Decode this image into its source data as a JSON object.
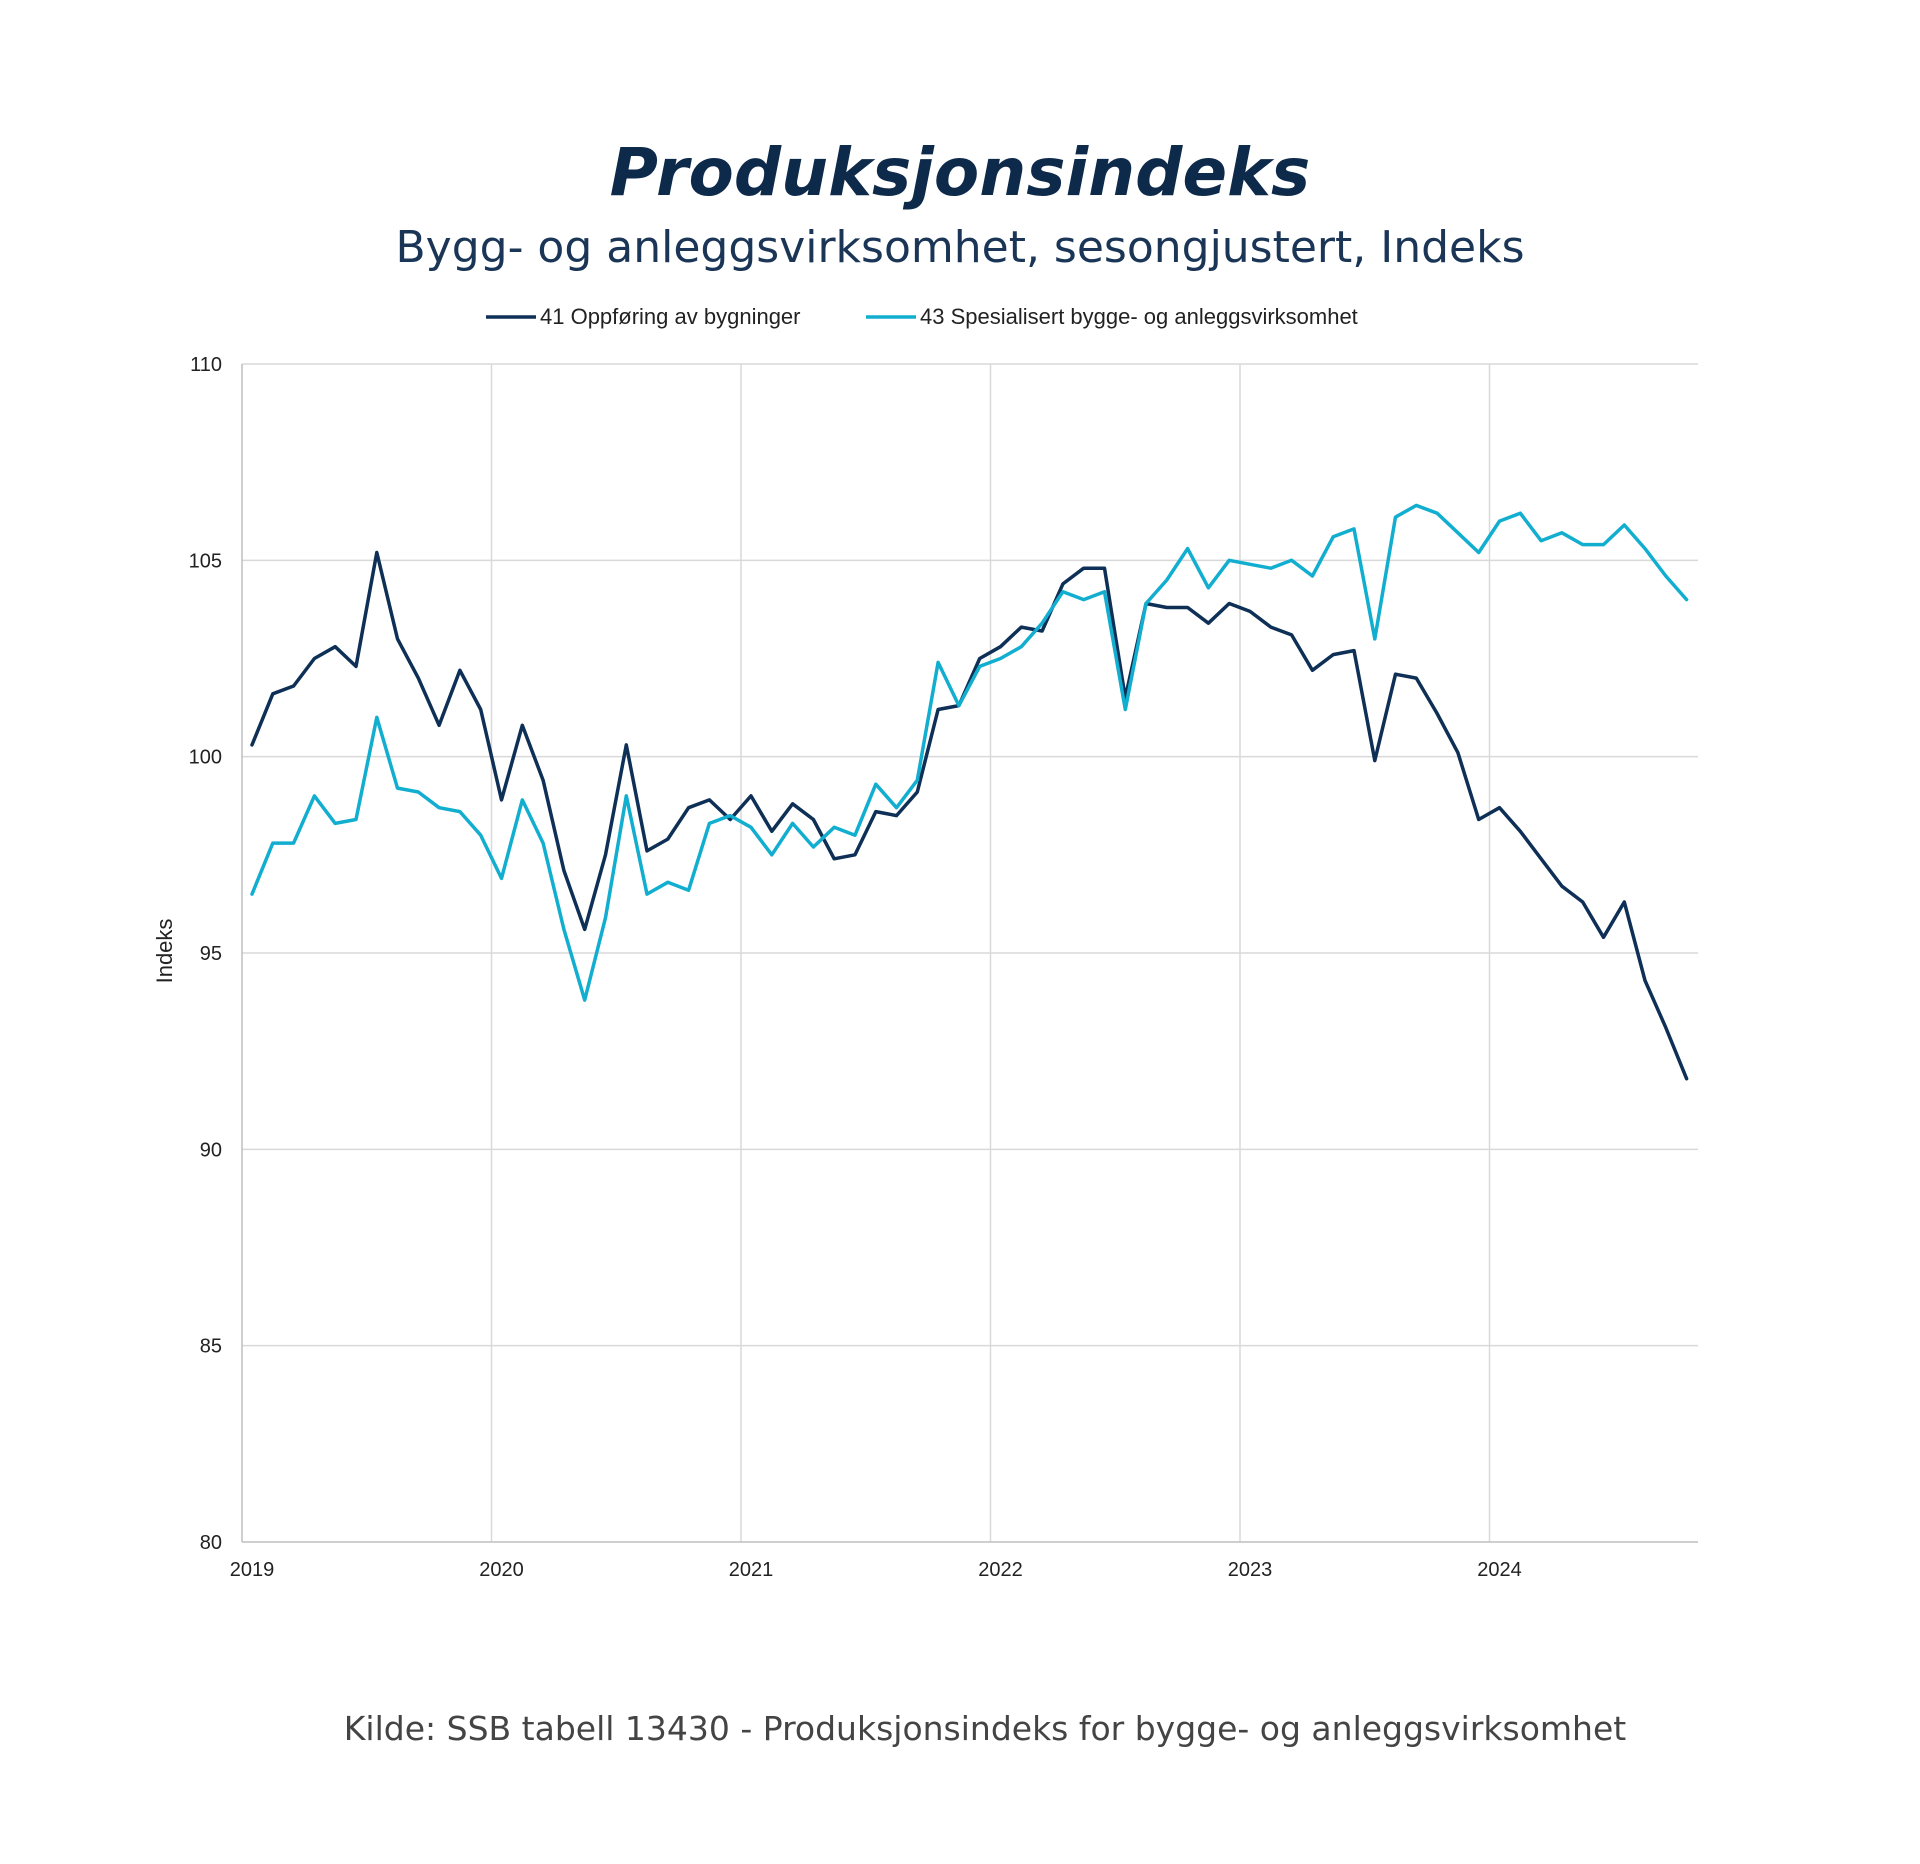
{
  "chart_data": {
    "type": "line",
    "title": "Produksjonsindeks",
    "subtitle": "Bygg- og anleggsvirksomhet, sesongjustert, Indeks",
    "ylabel": "Indeks",
    "xlabel": "",
    "ylim": [
      80,
      110
    ],
    "yticks": [
      80,
      85,
      90,
      95,
      100,
      105,
      110
    ],
    "xticks": [
      "2019",
      "2020",
      "2021",
      "2022",
      "2023",
      "2024"
    ],
    "x_start": "2019-01",
    "grid": true,
    "legend_position": "top",
    "source": "Kilde: SSB tabell 13430 - Produksjonsindeks for bygge- og anleggsvirksomhet",
    "series": [
      {
        "name": "41 Oppføring av bygninger",
        "color": "#0e2f56",
        "values": [
          100.3,
          101.6,
          101.8,
          102.5,
          102.8,
          102.3,
          105.2,
          103.0,
          102.0,
          100.8,
          102.2,
          101.2,
          98.9,
          100.8,
          99.4,
          97.1,
          95.6,
          97.5,
          100.3,
          97.6,
          97.9,
          98.7,
          98.9,
          98.4,
          99.0,
          98.1,
          98.8,
          98.4,
          97.4,
          97.5,
          98.6,
          98.5,
          99.1,
          101.2,
          101.3,
          102.5,
          102.8,
          103.3,
          103.2,
          104.4,
          104.8,
          104.8,
          101.5,
          103.9,
          103.8,
          103.8,
          103.4,
          103.9,
          103.7,
          103.3,
          103.1,
          102.2,
          102.6,
          102.7,
          99.9,
          102.1,
          102.0,
          101.1,
          100.1,
          98.4,
          98.7,
          98.1,
          97.4,
          96.7,
          96.3,
          95.4,
          96.3,
          94.3,
          93.1,
          91.8
        ]
      },
      {
        "name": "43 Spesialisert bygge- og anleggsvirksomhet",
        "color": "#12aed0",
        "values": [
          96.5,
          97.8,
          97.8,
          99.0,
          98.3,
          98.4,
          101.0,
          99.2,
          99.1,
          98.7,
          98.6,
          98.0,
          96.9,
          98.9,
          97.8,
          95.6,
          93.8,
          95.9,
          99.0,
          96.5,
          96.8,
          96.6,
          98.3,
          98.5,
          98.2,
          97.5,
          98.3,
          97.7,
          98.2,
          98.0,
          99.3,
          98.7,
          99.4,
          102.4,
          101.3,
          102.3,
          102.5,
          102.8,
          103.4,
          104.2,
          104.0,
          104.2,
          101.2,
          103.9,
          104.5,
          105.3,
          104.3,
          105.0,
          104.9,
          104.8,
          105.0,
          104.6,
          105.6,
          105.8,
          103.0,
          106.1,
          106.4,
          106.2,
          105.7,
          105.2,
          106.0,
          106.2,
          105.5,
          105.7,
          105.4,
          105.4,
          105.9,
          105.3,
          104.6,
          104.0
        ]
      }
    ]
  }
}
